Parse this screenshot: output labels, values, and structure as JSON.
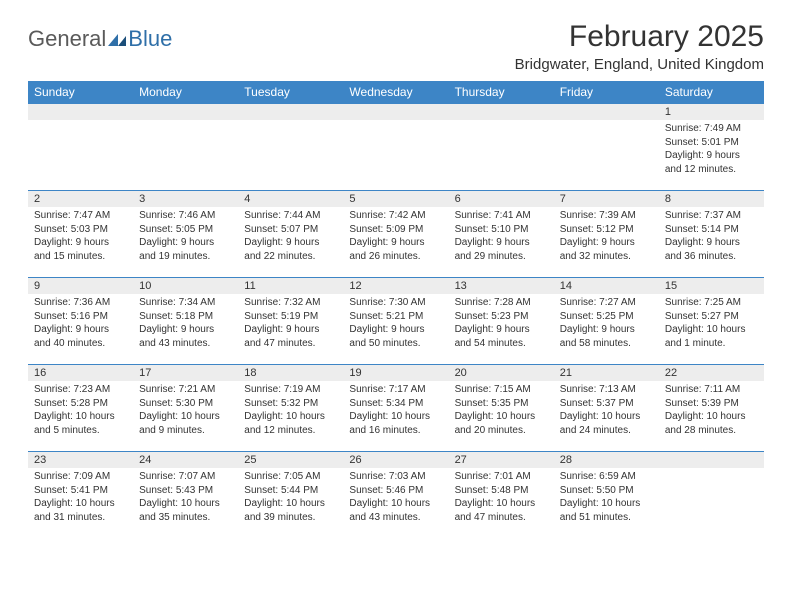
{
  "brand": {
    "general": "General",
    "blue": "Blue"
  },
  "title": "February 2025",
  "location": "Bridgwater, England, United Kingdom",
  "colors": {
    "header_bg": "#3d85c6",
    "header_text": "#ffffff",
    "daynum_bg": "#ededed",
    "border": "#3d85c6",
    "text": "#333333",
    "logo_gray": "#5a5a5a",
    "logo_blue": "#2f6fa8"
  },
  "day_names": [
    "Sunday",
    "Monday",
    "Tuesday",
    "Wednesday",
    "Thursday",
    "Friday",
    "Saturday"
  ],
  "weeks": [
    [
      {
        "n": "",
        "lines": []
      },
      {
        "n": "",
        "lines": []
      },
      {
        "n": "",
        "lines": []
      },
      {
        "n": "",
        "lines": []
      },
      {
        "n": "",
        "lines": []
      },
      {
        "n": "",
        "lines": []
      },
      {
        "n": "1",
        "lines": [
          "Sunrise: 7:49 AM",
          "Sunset: 5:01 PM",
          "Daylight: 9 hours",
          "and 12 minutes."
        ]
      }
    ],
    [
      {
        "n": "2",
        "lines": [
          "Sunrise: 7:47 AM",
          "Sunset: 5:03 PM",
          "Daylight: 9 hours",
          "and 15 minutes."
        ]
      },
      {
        "n": "3",
        "lines": [
          "Sunrise: 7:46 AM",
          "Sunset: 5:05 PM",
          "Daylight: 9 hours",
          "and 19 minutes."
        ]
      },
      {
        "n": "4",
        "lines": [
          "Sunrise: 7:44 AM",
          "Sunset: 5:07 PM",
          "Daylight: 9 hours",
          "and 22 minutes."
        ]
      },
      {
        "n": "5",
        "lines": [
          "Sunrise: 7:42 AM",
          "Sunset: 5:09 PM",
          "Daylight: 9 hours",
          "and 26 minutes."
        ]
      },
      {
        "n": "6",
        "lines": [
          "Sunrise: 7:41 AM",
          "Sunset: 5:10 PM",
          "Daylight: 9 hours",
          "and 29 minutes."
        ]
      },
      {
        "n": "7",
        "lines": [
          "Sunrise: 7:39 AM",
          "Sunset: 5:12 PM",
          "Daylight: 9 hours",
          "and 32 minutes."
        ]
      },
      {
        "n": "8",
        "lines": [
          "Sunrise: 7:37 AM",
          "Sunset: 5:14 PM",
          "Daylight: 9 hours",
          "and 36 minutes."
        ]
      }
    ],
    [
      {
        "n": "9",
        "lines": [
          "Sunrise: 7:36 AM",
          "Sunset: 5:16 PM",
          "Daylight: 9 hours",
          "and 40 minutes."
        ]
      },
      {
        "n": "10",
        "lines": [
          "Sunrise: 7:34 AM",
          "Sunset: 5:18 PM",
          "Daylight: 9 hours",
          "and 43 minutes."
        ]
      },
      {
        "n": "11",
        "lines": [
          "Sunrise: 7:32 AM",
          "Sunset: 5:19 PM",
          "Daylight: 9 hours",
          "and 47 minutes."
        ]
      },
      {
        "n": "12",
        "lines": [
          "Sunrise: 7:30 AM",
          "Sunset: 5:21 PM",
          "Daylight: 9 hours",
          "and 50 minutes."
        ]
      },
      {
        "n": "13",
        "lines": [
          "Sunrise: 7:28 AM",
          "Sunset: 5:23 PM",
          "Daylight: 9 hours",
          "and 54 minutes."
        ]
      },
      {
        "n": "14",
        "lines": [
          "Sunrise: 7:27 AM",
          "Sunset: 5:25 PM",
          "Daylight: 9 hours",
          "and 58 minutes."
        ]
      },
      {
        "n": "15",
        "lines": [
          "Sunrise: 7:25 AM",
          "Sunset: 5:27 PM",
          "Daylight: 10 hours",
          "and 1 minute."
        ]
      }
    ],
    [
      {
        "n": "16",
        "lines": [
          "Sunrise: 7:23 AM",
          "Sunset: 5:28 PM",
          "Daylight: 10 hours",
          "and 5 minutes."
        ]
      },
      {
        "n": "17",
        "lines": [
          "Sunrise: 7:21 AM",
          "Sunset: 5:30 PM",
          "Daylight: 10 hours",
          "and 9 minutes."
        ]
      },
      {
        "n": "18",
        "lines": [
          "Sunrise: 7:19 AM",
          "Sunset: 5:32 PM",
          "Daylight: 10 hours",
          "and 12 minutes."
        ]
      },
      {
        "n": "19",
        "lines": [
          "Sunrise: 7:17 AM",
          "Sunset: 5:34 PM",
          "Daylight: 10 hours",
          "and 16 minutes."
        ]
      },
      {
        "n": "20",
        "lines": [
          "Sunrise: 7:15 AM",
          "Sunset: 5:35 PM",
          "Daylight: 10 hours",
          "and 20 minutes."
        ]
      },
      {
        "n": "21",
        "lines": [
          "Sunrise: 7:13 AM",
          "Sunset: 5:37 PM",
          "Daylight: 10 hours",
          "and 24 minutes."
        ]
      },
      {
        "n": "22",
        "lines": [
          "Sunrise: 7:11 AM",
          "Sunset: 5:39 PM",
          "Daylight: 10 hours",
          "and 28 minutes."
        ]
      }
    ],
    [
      {
        "n": "23",
        "lines": [
          "Sunrise: 7:09 AM",
          "Sunset: 5:41 PM",
          "Daylight: 10 hours",
          "and 31 minutes."
        ]
      },
      {
        "n": "24",
        "lines": [
          "Sunrise: 7:07 AM",
          "Sunset: 5:43 PM",
          "Daylight: 10 hours",
          "and 35 minutes."
        ]
      },
      {
        "n": "25",
        "lines": [
          "Sunrise: 7:05 AM",
          "Sunset: 5:44 PM",
          "Daylight: 10 hours",
          "and 39 minutes."
        ]
      },
      {
        "n": "26",
        "lines": [
          "Sunrise: 7:03 AM",
          "Sunset: 5:46 PM",
          "Daylight: 10 hours",
          "and 43 minutes."
        ]
      },
      {
        "n": "27",
        "lines": [
          "Sunrise: 7:01 AM",
          "Sunset: 5:48 PM",
          "Daylight: 10 hours",
          "and 47 minutes."
        ]
      },
      {
        "n": "28",
        "lines": [
          "Sunrise: 6:59 AM",
          "Sunset: 5:50 PM",
          "Daylight: 10 hours",
          "and 51 minutes."
        ]
      },
      {
        "n": "",
        "lines": []
      }
    ]
  ]
}
